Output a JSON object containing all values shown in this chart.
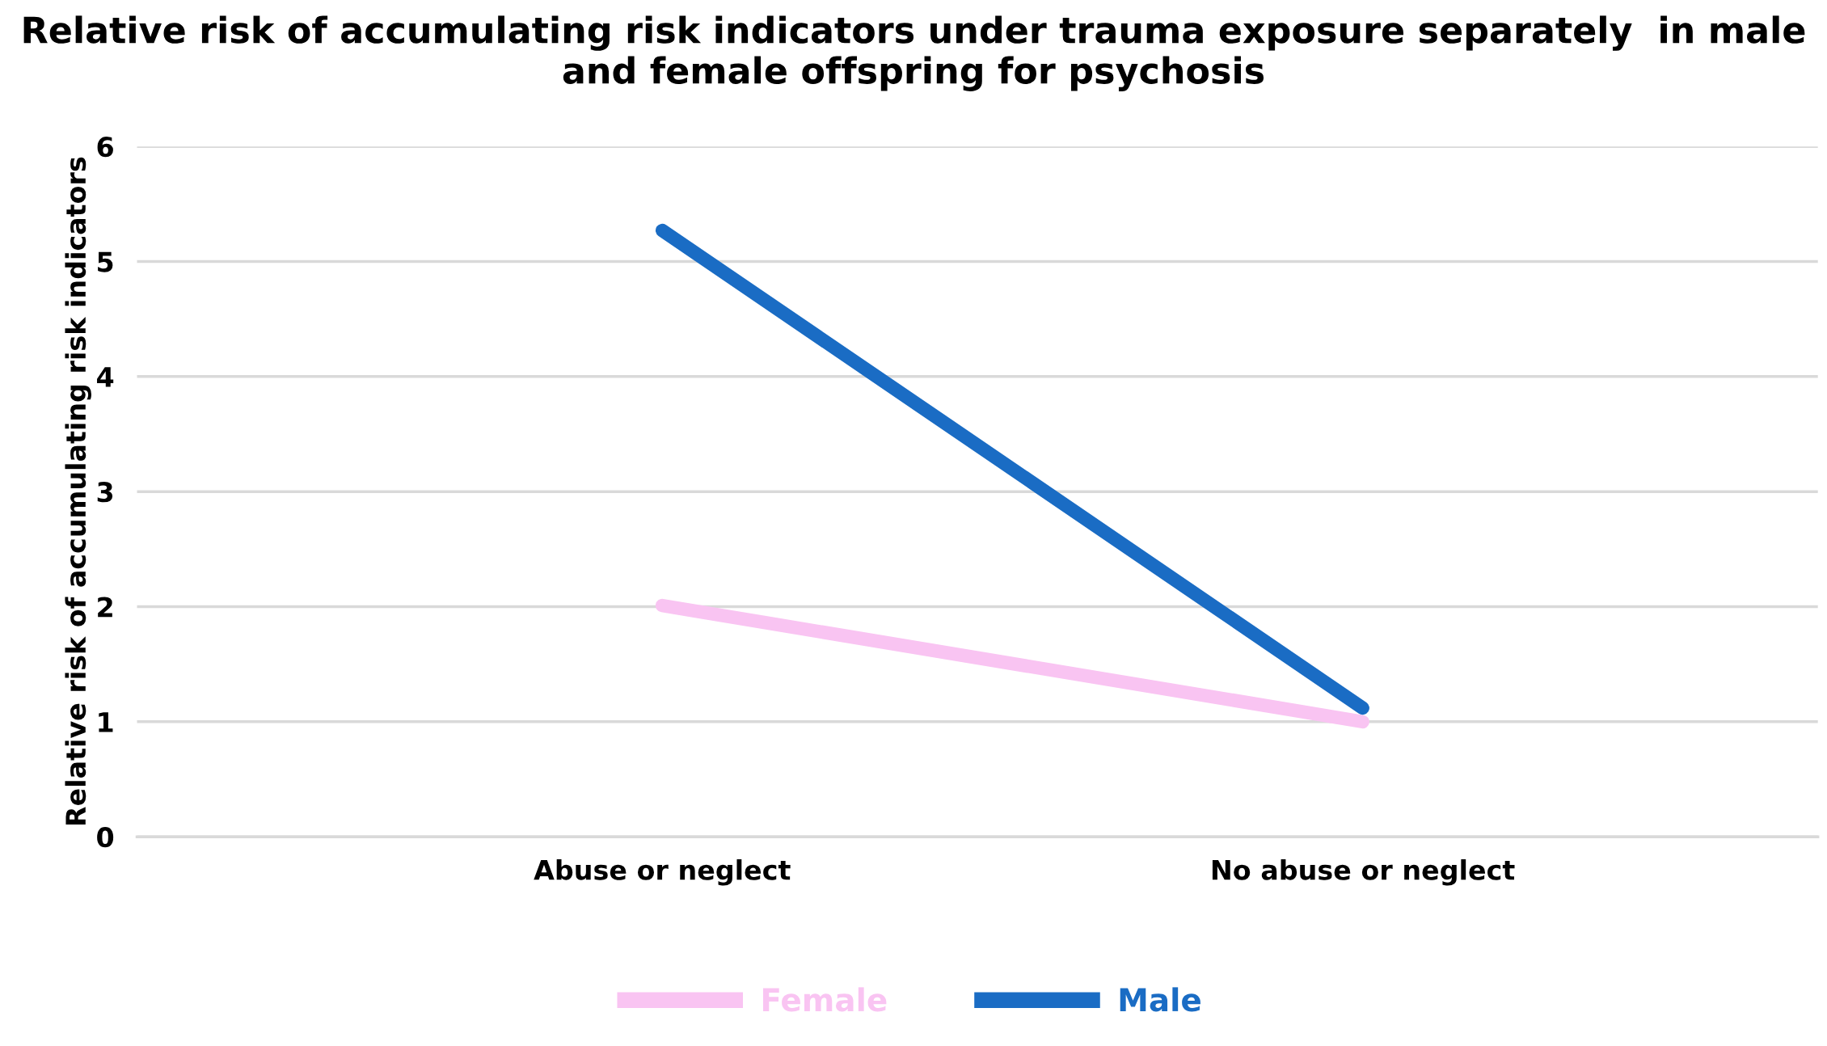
{
  "chart_data": {
    "type": "line",
    "title": "Relative risk of accumulating risk indicators under trauma exposure separately  in male and female offspring for psychosis",
    "ylabel": "Relative risk of accumulating risk indicators",
    "categories": [
      "Abuse or neglect",
      "No abuse or neglect"
    ],
    "series": [
      {
        "name": "Female",
        "color": "#f9c4f2",
        "values": [
          2.01,
          1.0
        ]
      },
      {
        "name": "Male",
        "color": "#1a6cc4",
        "values": [
          5.27,
          1.12
        ]
      }
    ],
    "ylim": [
      0,
      6
    ],
    "yticks": [
      0,
      1,
      2,
      3,
      4,
      5,
      6
    ],
    "grid": "y",
    "legend": "bottom",
    "line_style": "solid"
  }
}
